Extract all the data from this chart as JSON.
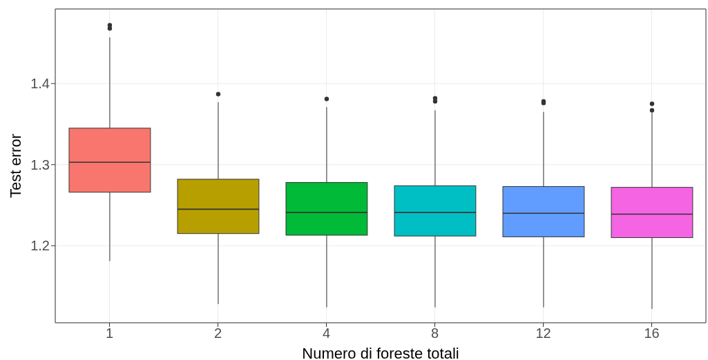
{
  "chart_data": {
    "type": "box",
    "xlabel": "Numero di foreste totali",
    "ylabel": "Test error",
    "categories": [
      "1",
      "2",
      "4",
      "8",
      "12",
      "16"
    ],
    "colors": [
      "#f8766d",
      "#b79f00",
      "#00ba38",
      "#00bfc4",
      "#619cff",
      "#f564e3"
    ],
    "boxes": [
      {
        "low": 1.181,
        "q1": 1.266,
        "median": 1.303,
        "q3": 1.345,
        "high": 1.457,
        "outliers": [
          1.472,
          1.468
        ]
      },
      {
        "low": 1.128,
        "q1": 1.215,
        "median": 1.245,
        "q3": 1.282,
        "high": 1.377,
        "outliers": [
          1.387
        ]
      },
      {
        "low": 1.124,
        "q1": 1.213,
        "median": 1.241,
        "q3": 1.278,
        "high": 1.371,
        "outliers": [
          1.381
        ]
      },
      {
        "low": 1.124,
        "q1": 1.212,
        "median": 1.241,
        "q3": 1.274,
        "high": 1.367,
        "outliers": [
          1.382,
          1.378
        ]
      },
      {
        "low": 1.124,
        "q1": 1.211,
        "median": 1.24,
        "q3": 1.273,
        "high": 1.365,
        "outliers": [
          1.378,
          1.376
        ]
      },
      {
        "low": 1.122,
        "q1": 1.21,
        "median": 1.239,
        "q3": 1.272,
        "high": 1.364,
        "outliers": [
          1.375,
          1.367
        ]
      }
    ],
    "ylim": [
      1.105,
      1.492
    ],
    "yticks": [
      1.2,
      1.3,
      1.4
    ],
    "grid": true
  }
}
